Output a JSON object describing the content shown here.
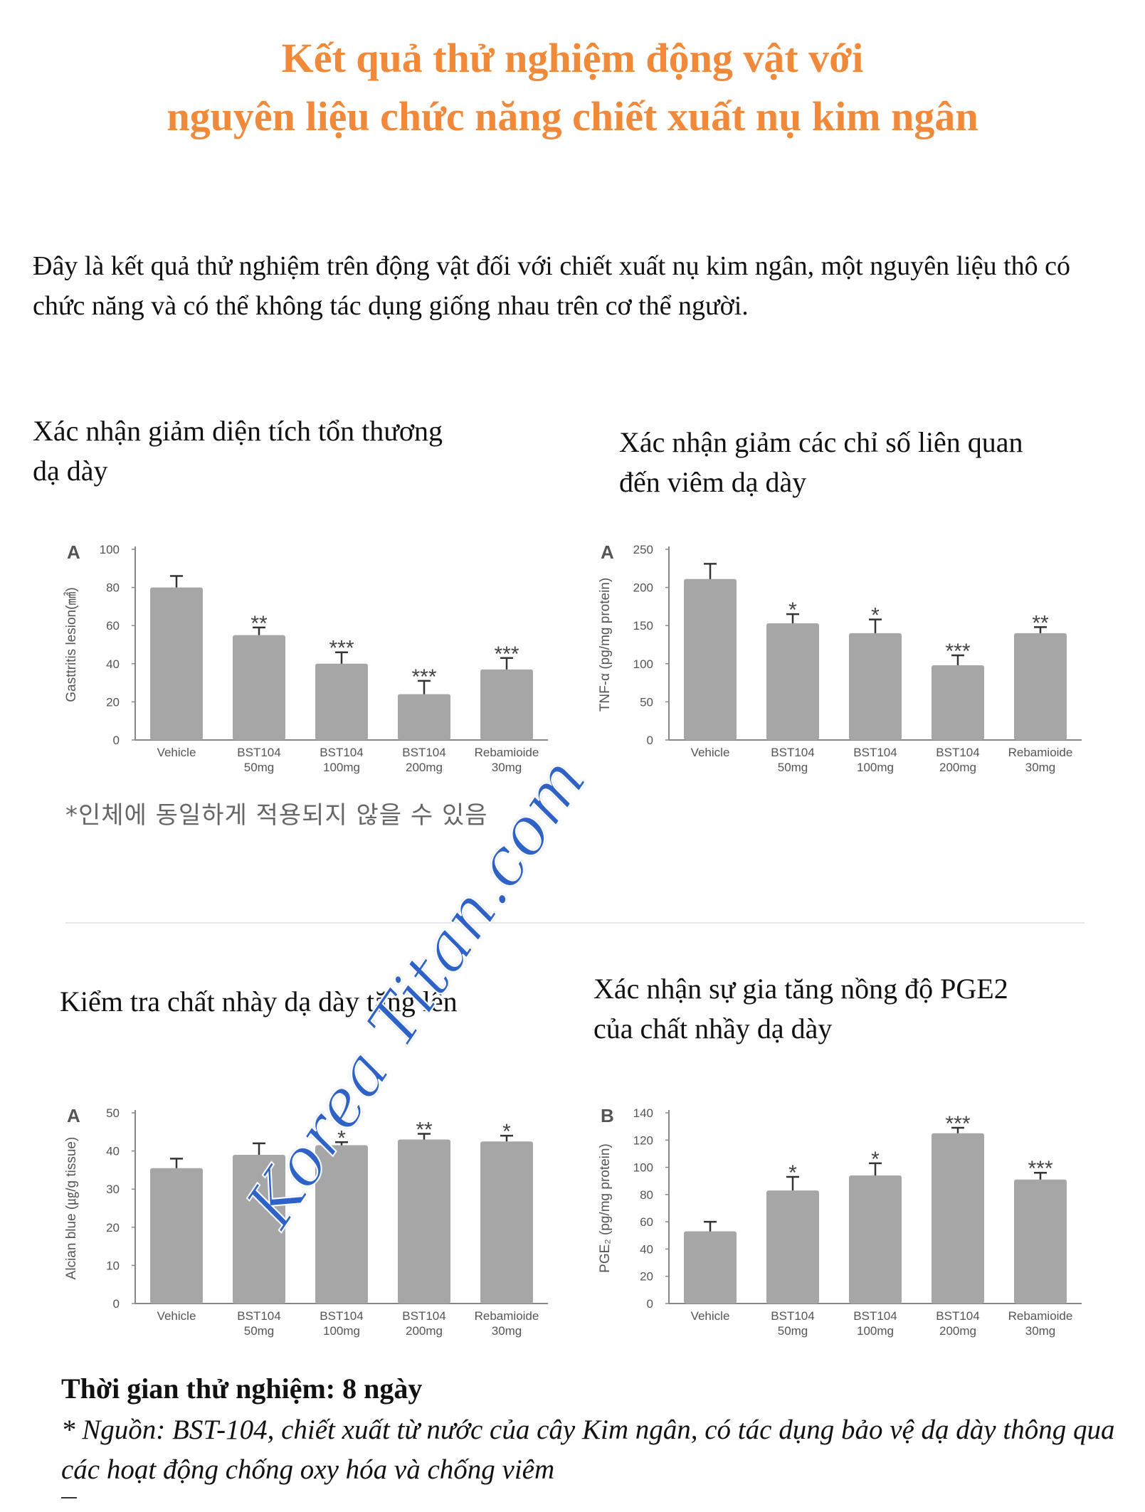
{
  "title": {
    "line1": "Kết quả thử nghiệm động vật với",
    "line2": "nguyên liệu chức năng chiết xuất nụ kim ngân"
  },
  "intro": "Đây là kết quả thử nghiệm trên động vật đối với chiết xuất nụ kim ngân, một nguyên liệu thô có chức năng và có thể không tác dụng giống nhau trên cơ thể người.",
  "sections": {
    "s1": {
      "line1": "Xác nhận giảm diện tích tổn thương",
      "line2": "dạ dày"
    },
    "s2": {
      "line1": "Xác nhận giảm các chỉ số liên quan",
      "line2": "đến viêm dạ dày"
    },
    "s3": {
      "line1": "Kiểm tra chất nhày dạ dày tăng lên"
    },
    "s4": {
      "line1": "Xác nhận sự gia tăng nồng độ PGE2",
      "line2": "của chất nhầy dạ dày"
    }
  },
  "korean_note": "*인체에 동일하게 적용되지 않을 수 있음",
  "duration": "Thời gian thử nghiệm: 8 ngày",
  "source": " * Nguồn: BST-104, chiết xuất từ nước của cây Kim ngân, có tác dụng bảo vệ dạ dày thông qua các hoạt động chống oxy hóa và chống viêm",
  "watermark": "Korea Titan.com",
  "colors": {
    "title": "#F08A3A",
    "bar": "#A6A6A6",
    "axis": "#888888",
    "watermark": "#2F62C7"
  },
  "chart_data": [
    {
      "type": "bar",
      "panel": "A",
      "ylabel": "Gasttritis lesion(㎟)",
      "ylim": [
        0,
        100
      ],
      "yticks": [
        0,
        20,
        40,
        60,
        80,
        100
      ],
      "categories": [
        [
          "Vehicle"
        ],
        [
          "BST104",
          "50mg"
        ],
        [
          "BST104",
          "100mg"
        ],
        [
          "BST104",
          "200mg"
        ],
        [
          "Rebamioide",
          "30mg"
        ]
      ],
      "values": [
        80,
        55,
        40,
        24,
        37
      ],
      "errors": [
        6,
        4,
        6,
        7,
        6
      ],
      "significance": [
        "",
        "**",
        "***",
        "***",
        "***"
      ]
    },
    {
      "type": "bar",
      "panel": "A",
      "ylabel": "TNF-α (pg/mg protein)",
      "ylim": [
        0,
        250
      ],
      "yticks": [
        0,
        50,
        100,
        150,
        200,
        250
      ],
      "categories": [
        [
          "Vehicle"
        ],
        [
          "BST104",
          "50mg"
        ],
        [
          "BST104",
          "100mg"
        ],
        [
          "BST104",
          "200mg"
        ],
        [
          "Rebamioide",
          "30mg"
        ]
      ],
      "values": [
        211,
        153,
        140,
        98,
        140
      ],
      "errors": [
        20,
        12,
        18,
        13,
        8
      ],
      "significance": [
        "",
        "*",
        "*",
        "***",
        "**"
      ]
    },
    {
      "type": "bar",
      "panel": "A",
      "ylabel": "Alcian blue (㎍/g tissue)",
      "ylim": [
        0,
        50
      ],
      "yticks": [
        0,
        10,
        20,
        30,
        40,
        50
      ],
      "categories": [
        [
          "Vehicle"
        ],
        [
          "BST104",
          "50mg"
        ],
        [
          "BST104",
          "100mg"
        ],
        [
          "BST104",
          "200mg"
        ],
        [
          "Rebamioide",
          "30mg"
        ]
      ],
      "values": [
        35.5,
        39,
        41.5,
        43,
        42.5
      ],
      "errors": [
        2.5,
        3,
        0.8,
        1.5,
        1.5
      ],
      "significance": [
        "",
        "",
        "*",
        "**",
        "*"
      ]
    },
    {
      "type": "bar",
      "panel": "B",
      "ylabel": "PGE₂ (pg/mg protein)",
      "ylim": [
        0,
        140
      ],
      "yticks": [
        0,
        20,
        40,
        60,
        80,
        100,
        120,
        140
      ],
      "categories": [
        [
          "Vehicle"
        ],
        [
          "BST104",
          "50mg"
        ],
        [
          "BST104",
          "100mg"
        ],
        [
          "BST104",
          "200mg"
        ],
        [
          "Rebamioide",
          "30mg"
        ]
      ],
      "values": [
        53,
        83,
        94,
        125,
        91
      ],
      "errors": [
        7,
        10,
        9,
        4,
        5
      ],
      "significance": [
        "",
        "*",
        "*",
        "***",
        "***"
      ]
    }
  ]
}
